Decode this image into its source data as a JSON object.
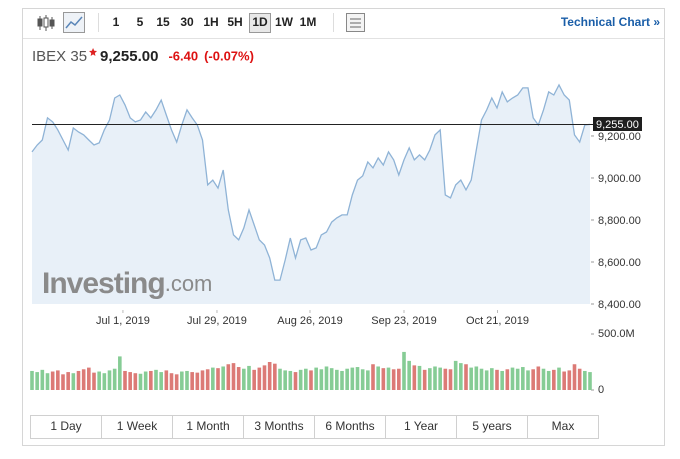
{
  "toolbar": {
    "intervals": [
      "1",
      "5",
      "15",
      "30",
      "1H",
      "5H",
      "1D",
      "1W",
      "1M"
    ],
    "selected": 6,
    "link": "Technical Chart »"
  },
  "quote": {
    "name": "IBEX 35",
    "change": "-6.40",
    "change_pct": "(-0.07%)"
  },
  "chart_data": {
    "type": "line",
    "color": "#8fb3d6",
    "fill": "#e4edf7",
    "values": [
      9124,
      9157,
      9181,
      9286,
      9267,
      9229,
      9181,
      9133,
      9238,
      9219,
      9205,
      9181,
      9157,
      9167,
      9229,
      9276,
      9381,
      9395,
      9348,
      9286,
      9267,
      9276,
      9314,
      9286,
      9324,
      9371,
      9300,
      9229,
      9171,
      9252,
      9324,
      9286,
      9252,
      9181,
      8967,
      8990,
      8952,
      9038,
      8848,
      8729,
      8705,
      8762,
      8848,
      8776,
      8705,
      8681,
      8619,
      8514,
      8514,
      8610,
      8714,
      8619,
      8705,
      8714,
      8657,
      8667,
      8729,
      8743,
      8790,
      8810,
      8824,
      8824,
      8919,
      8990,
      9010,
      9076,
      9048,
      9095,
      9062,
      9124,
      9086,
      9014,
      9086,
      9143,
      9086,
      9110,
      9086,
      9133,
      9205,
      9229,
      8919,
      8905,
      8967,
      8990,
      8943,
      8990,
      9133,
      9276,
      9324,
      9381,
      9333,
      9410,
      9362,
      9381,
      9395,
      9429,
      9429,
      9286,
      9252,
      9324,
      9410,
      9395,
      9443,
      9395,
      9371,
      9205,
      9171,
      9252,
      9255
    ],
    "xticks": [
      {
        "value": 17.6,
        "label": "Jul 1, 2019"
      },
      {
        "value": 35.8,
        "label": "Jul 29, 2019"
      },
      {
        "value": 53.8,
        "label": "Aug 26, 2019"
      },
      {
        "value": 72.0,
        "label": "Sep 23, 2019"
      },
      {
        "value": 90.1,
        "label": "Oct 21, 2019"
      }
    ],
    "ylim": [
      8400,
      9476
    ],
    "yticks": [
      {
        "value": 9200,
        "label": "9,200.00"
      },
      {
        "value": 9000,
        "label": "9,000.00"
      },
      {
        "value": 8800,
        "label": "8,800.00"
      },
      {
        "value": 8600,
        "label": "8,600.00"
      },
      {
        "value": 8400,
        "label": "8,400.00"
      }
    ],
    "last": {
      "value": 9255,
      "label": "9,255.00"
    },
    "watermark": [
      "Investing",
      ".com"
    ],
    "volume": {
      "up_color": "#86cc95",
      "down_color": "#dc7a76",
      "ylim": [
        0,
        500
      ],
      "yticks": [
        {
          "value": 500,
          "label": "500.0M"
        },
        0
      ],
      "values": [
        170,
        160,
        180,
        150,
        165,
        175,
        140,
        160,
        150,
        170,
        185,
        200,
        155,
        165,
        150,
        175,
        190,
        300,
        170,
        160,
        150,
        145,
        165,
        170,
        180,
        160,
        175,
        150,
        140,
        165,
        170,
        160,
        155,
        175,
        185,
        200,
        195,
        210,
        230,
        240,
        205,
        190,
        215,
        180,
        200,
        220,
        250,
        235,
        190,
        175,
        170,
        160,
        180,
        190,
        175,
        200,
        185,
        210,
        195,
        180,
        170,
        190,
        200,
        205,
        185,
        175,
        230,
        210,
        195,
        200,
        185,
        190,
        340,
        260,
        220,
        215,
        180,
        195,
        210,
        200,
        190,
        185,
        260,
        240,
        230,
        200,
        210,
        190,
        175,
        195,
        180,
        170,
        185,
        200,
        190,
        205,
        175,
        185,
        210,
        190,
        170,
        180,
        200,
        165,
        175,
        230,
        190,
        170,
        160
      ]
    }
  },
  "ranges": [
    "1 Day",
    "1 Week",
    "1 Month",
    "3 Months",
    "6 Months",
    "1 Year",
    "5 years",
    "Max"
  ]
}
